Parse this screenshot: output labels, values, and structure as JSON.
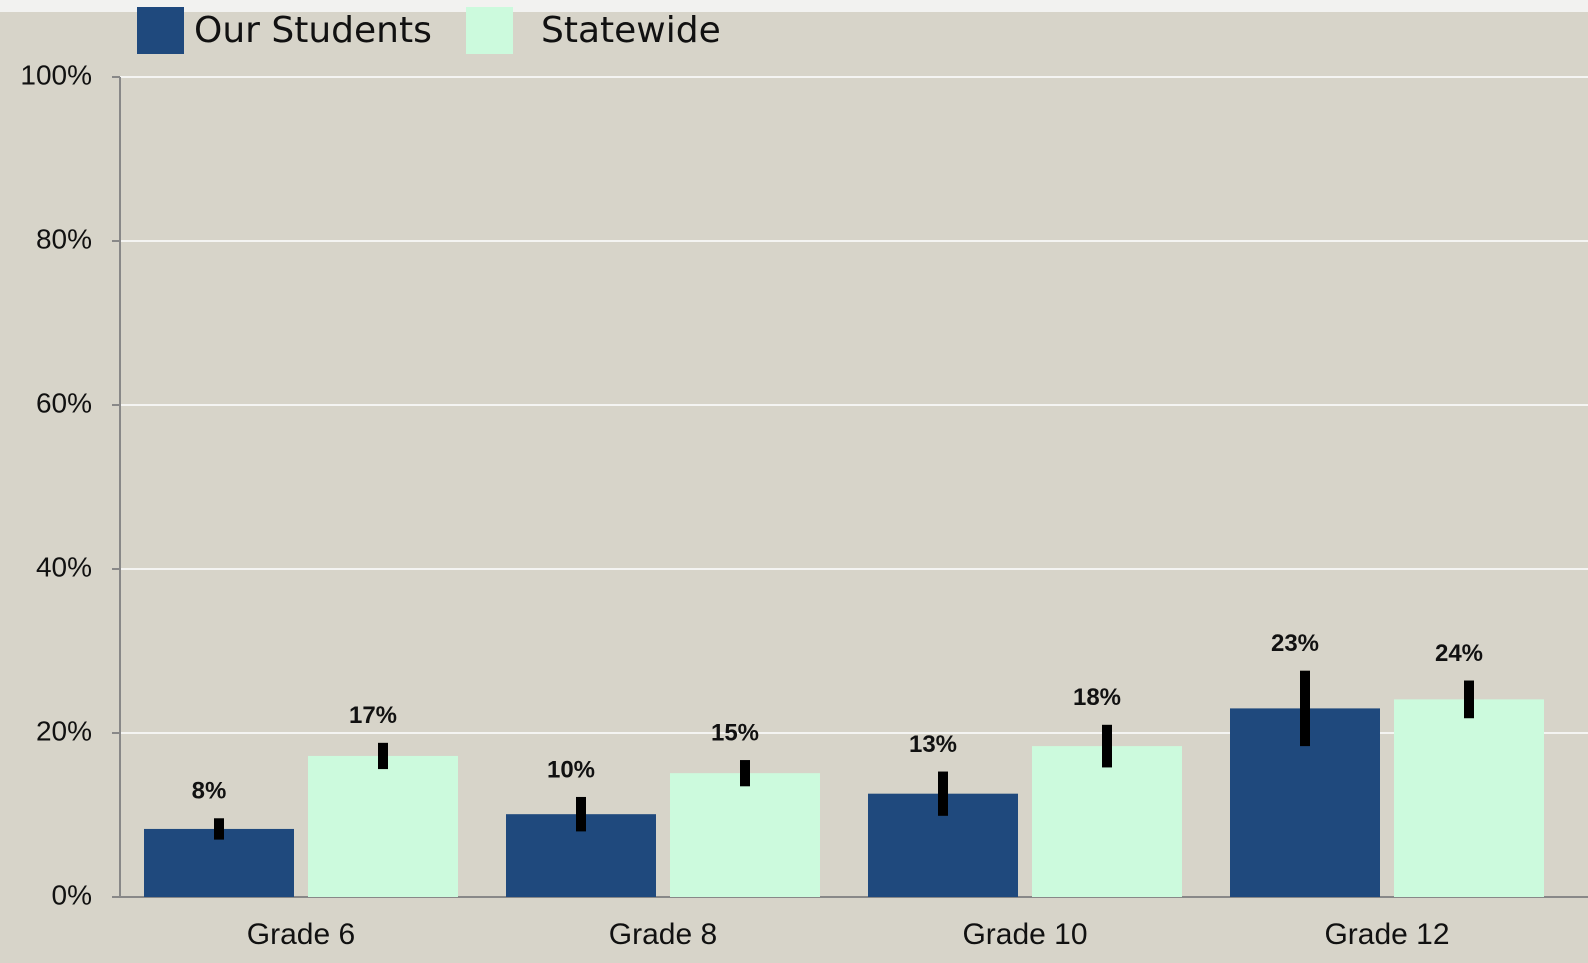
{
  "chart_data": {
    "type": "bar",
    "categories": [
      "Grade 6",
      "Grade 8",
      "Grade 10",
      "Grade 12"
    ],
    "series": [
      {
        "name": "Our Students",
        "color": "#1f497d",
        "values": [
          8.3,
          10.1,
          12.6,
          23.0
        ],
        "errors": [
          1.3,
          2.1,
          2.7,
          4.6
        ],
        "value_labels": [
          "8%",
          "10%",
          "13%",
          "23%"
        ]
      },
      {
        "name": "Statewide",
        "color": "#ccfadd",
        "values": [
          17.2,
          15.1,
          18.4,
          24.1
        ],
        "errors": [
          1.6,
          1.6,
          2.6,
          2.3
        ],
        "value_labels": [
          "17%",
          "15%",
          "18%",
          "24%"
        ]
      }
    ],
    "ylim": [
      0,
      100
    ],
    "yticks": [
      {
        "value": 0,
        "label": "0%"
      },
      {
        "value": 20,
        "label": "20%"
      },
      {
        "value": 40,
        "label": "40%"
      },
      {
        "value": 60,
        "label": "60%"
      },
      {
        "value": 80,
        "label": "80%"
      },
      {
        "value": 100,
        "label": "100%"
      }
    ],
    "grid": true,
    "legend": "top-left"
  }
}
